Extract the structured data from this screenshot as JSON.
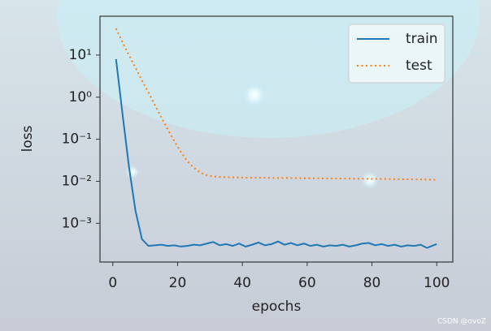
{
  "chart_data": {
    "type": "line",
    "x_label": "epochs",
    "y_label": "loss",
    "x": [
      1,
      3,
      5,
      7,
      9,
      11,
      13,
      15,
      17,
      19,
      21,
      23,
      25,
      27,
      29,
      31,
      33,
      35,
      37,
      39,
      41,
      43,
      45,
      47,
      49,
      51,
      53,
      55,
      57,
      59,
      61,
      63,
      65,
      67,
      69,
      71,
      73,
      75,
      77,
      79,
      81,
      83,
      85,
      87,
      89,
      91,
      93,
      95,
      97,
      99,
      100
    ],
    "series": [
      {
        "name": "train",
        "color": "#1f77b4",
        "style": "solid",
        "values": [
          8,
          0.4,
          0.022,
          0.002,
          0.00042,
          0.00029,
          0.0003,
          0.00031,
          0.00029,
          0.0003,
          0.00028,
          0.00029,
          0.00031,
          0.0003,
          0.00033,
          0.00036,
          0.0003,
          0.00032,
          0.00029,
          0.00033,
          0.00028,
          0.00031,
          0.00035,
          0.0003,
          0.00032,
          0.00037,
          0.00031,
          0.00034,
          0.0003,
          0.00033,
          0.00029,
          0.00031,
          0.00028,
          0.0003,
          0.00029,
          0.00031,
          0.00028,
          0.0003,
          0.00033,
          0.00034,
          0.0003,
          0.00032,
          0.00029,
          0.00031,
          0.00028,
          0.0003,
          0.00029,
          0.00031,
          0.00026,
          0.0003,
          0.00032
        ]
      },
      {
        "name": "test",
        "color": "#ff7f0e",
        "style": "dotted",
        "values": [
          43,
          20,
          10,
          5,
          2.5,
          1.3,
          0.65,
          0.33,
          0.17,
          0.09,
          0.05,
          0.03,
          0.021,
          0.016,
          0.014,
          0.013,
          0.0127,
          0.0125,
          0.0124,
          0.0123,
          0.0122,
          0.0122,
          0.0121,
          0.0121,
          0.012,
          0.012,
          0.012,
          0.0119,
          0.0119,
          0.0118,
          0.0118,
          0.0118,
          0.0117,
          0.0117,
          0.0116,
          0.0116,
          0.0116,
          0.0115,
          0.0115,
          0.0114,
          0.0114,
          0.0113,
          0.0113,
          0.0112,
          0.0112,
          0.0111,
          0.0111,
          0.011,
          0.011,
          0.0109,
          0.0108
        ]
      }
    ],
    "xlim": [
      -3.95,
      104.95
    ],
    "xticks": [
      0,
      20,
      40,
      60,
      80,
      100
    ],
    "ylim": [
      0.00012,
      84
    ],
    "y_scale": "log",
    "yticks": [
      {
        "value": 10,
        "label": "10¹"
      },
      {
        "value": 1,
        "label": "10⁰"
      },
      {
        "value": 0.1,
        "label": "10⁻¹"
      },
      {
        "value": 0.01,
        "label": "10⁻²"
      },
      {
        "value": 0.001,
        "label": "10⁻³"
      }
    ],
    "legend_position": "upper right",
    "watermark": "CSDN @ovoZ"
  }
}
